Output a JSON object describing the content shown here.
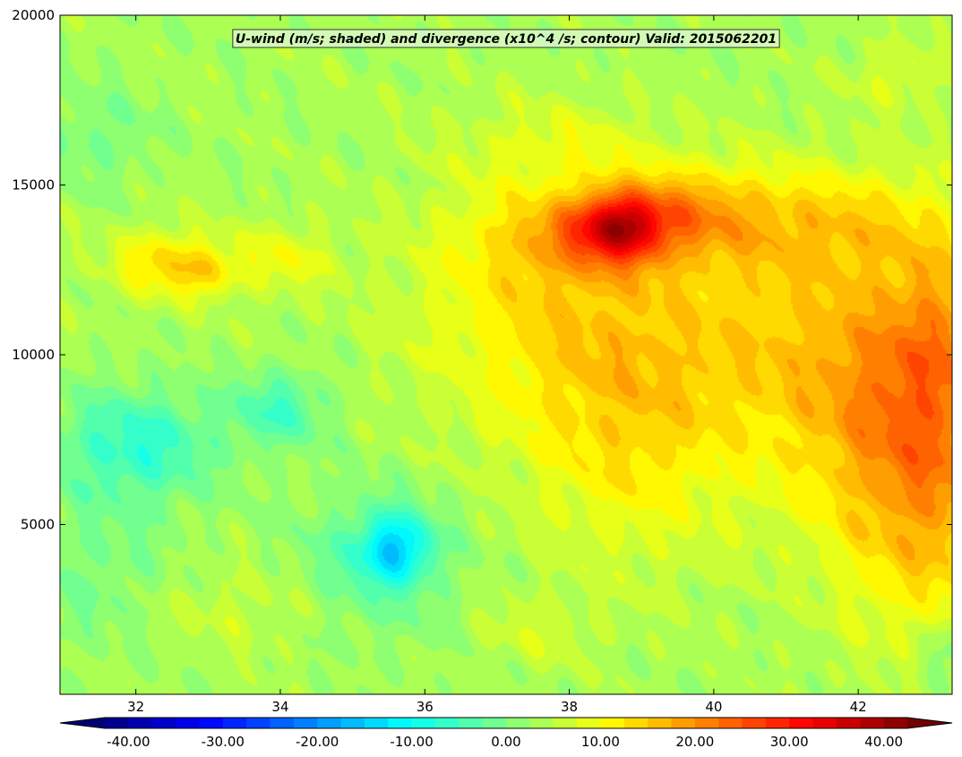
{
  "chart_data": {
    "type": "heatmap",
    "title": "U-wind (m/s; shaded) and divergence (x10^4 /s; contour) Valid: 2015062201",
    "xlabel": "",
    "ylabel": "",
    "xlim": [
      30.95,
      43.3
    ],
    "ylim": [
      0,
      20000
    ],
    "x_ticks": [
      32,
      34,
      36,
      38,
      40,
      42
    ],
    "x_tick_labels": [
      "32",
      "34",
      "36",
      "38",
      "40",
      "42"
    ],
    "y_ticks": [
      5000,
      10000,
      15000,
      20000
    ],
    "y_tick_labels": [
      "5000",
      "10000",
      "15000",
      "20000"
    ],
    "grid": false,
    "colorbar": {
      "min": -42.5,
      "max": 42.5,
      "step": 2.5,
      "extend": "both",
      "colormap": "jet",
      "tick_values": [
        -40,
        -30,
        -20,
        -10,
        0,
        10,
        20,
        30,
        40
      ],
      "tick_labels": [
        "-40.00",
        "-30.00",
        "-20.00",
        "-10.00",
        "0.00",
        "10.00",
        "20.00",
        "30.00",
        "40.00"
      ]
    },
    "field_features": [
      {
        "x": 38.7,
        "y": 13800,
        "sx": 0.45,
        "sy": 700,
        "value": 21
      },
      {
        "x": 39.6,
        "y": 14300,
        "sx": 0.7,
        "sy": 900,
        "value": 8
      },
      {
        "x": 38.0,
        "y": 13500,
        "sx": 0.9,
        "sy": 900,
        "value": 8
      },
      {
        "x": 41.3,
        "y": 13900,
        "sx": 1.4,
        "sy": 1100,
        "value": 8
      },
      {
        "x": 37.8,
        "y": 16200,
        "sx": 0.9,
        "sy": 900,
        "value": 4
      },
      {
        "x": 43.2,
        "y": 11000,
        "sx": 0.55,
        "sy": 1800,
        "value": 6
      },
      {
        "x": 43.0,
        "y": 7000,
        "sx": 0.9,
        "sy": 3500,
        "value": 16
      },
      {
        "x": 41.8,
        "y": 9500,
        "sx": 1.0,
        "sy": 3000,
        "value": 8
      },
      {
        "x": 40.6,
        "y": 10500,
        "sx": 1.0,
        "sy": 2500,
        "value": 4
      },
      {
        "x": 39.0,
        "y": 10000,
        "sx": 1.2,
        "sy": 3000,
        "value": 6
      },
      {
        "x": 37.5,
        "y": 11500,
        "sx": 1.3,
        "sy": 2500,
        "value": 7
      },
      {
        "x": 38.8,
        "y": 7000,
        "sx": 1.0,
        "sy": 2500,
        "value": 5
      },
      {
        "x": 32.4,
        "y": 12700,
        "sx": 0.5,
        "sy": 700,
        "value": 10
      },
      {
        "x": 33.0,
        "y": 12400,
        "sx": 0.3,
        "sy": 500,
        "value": 6
      },
      {
        "x": 34.0,
        "y": 12800,
        "sx": 0.5,
        "sy": 700,
        "value": 6
      },
      {
        "x": 32.0,
        "y": 7300,
        "sx": 0.8,
        "sy": 1200,
        "value": -10
      },
      {
        "x": 34.0,
        "y": 8400,
        "sx": 0.5,
        "sy": 800,
        "value": -8
      },
      {
        "x": 35.6,
        "y": 4300,
        "sx": 0.35,
        "sy": 700,
        "value": -14
      },
      {
        "x": 35.3,
        "y": 3900,
        "sx": 0.8,
        "sy": 1600,
        "value": -6
      },
      {
        "x": 31.4,
        "y": 16500,
        "sx": 0.6,
        "sy": 1000,
        "value": -4
      },
      {
        "x": 31.5,
        "y": 3500,
        "sx": 0.7,
        "sy": 1500,
        "value": -4
      },
      {
        "x": 33.5,
        "y": 2500,
        "sx": 0.9,
        "sy": 900,
        "value": 3
      },
      {
        "x": 43.2,
        "y": 1000,
        "sx": 0.4,
        "sy": 800,
        "value": -5
      },
      {
        "x": 42.6,
        "y": 18200,
        "sx": 0.5,
        "sy": 700,
        "value": 4
      },
      {
        "x": 37.5,
        "y": 1800,
        "sx": 0.6,
        "sy": 700,
        "value": 3
      }
    ]
  }
}
